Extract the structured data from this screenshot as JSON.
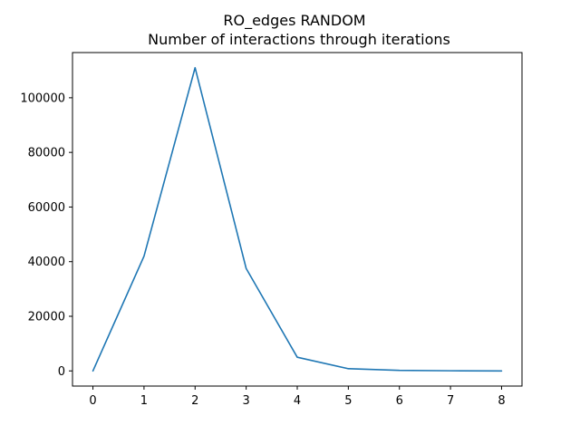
{
  "chart_data": {
    "type": "line",
    "title": "RO_edges RANDOM",
    "subtitle": "Number of interactions through iterations",
    "xlabel": "",
    "ylabel": "",
    "x": [
      0,
      1,
      2,
      3,
      4,
      5,
      6,
      7,
      8
    ],
    "series": [
      {
        "values": [
          0,
          42000,
          111000,
          37500,
          5000,
          800,
          200,
          50,
          0
        ],
        "color": "#1f77b4"
      }
    ],
    "xlim": [
      -0.4,
      8.4
    ],
    "ylim": [
      -5550,
      116550
    ],
    "xticks": [
      0,
      1,
      2,
      3,
      4,
      5,
      6,
      7,
      8
    ],
    "xtick_labels": [
      "0",
      "1",
      "2",
      "3",
      "4",
      "5",
      "6",
      "7",
      "8"
    ],
    "yticks": [
      0,
      20000,
      40000,
      60000,
      80000,
      100000
    ],
    "ytick_labels": [
      "0",
      "20000",
      "40000",
      "60000",
      "80000",
      "100000"
    ],
    "grid": false,
    "legend": "none"
  }
}
